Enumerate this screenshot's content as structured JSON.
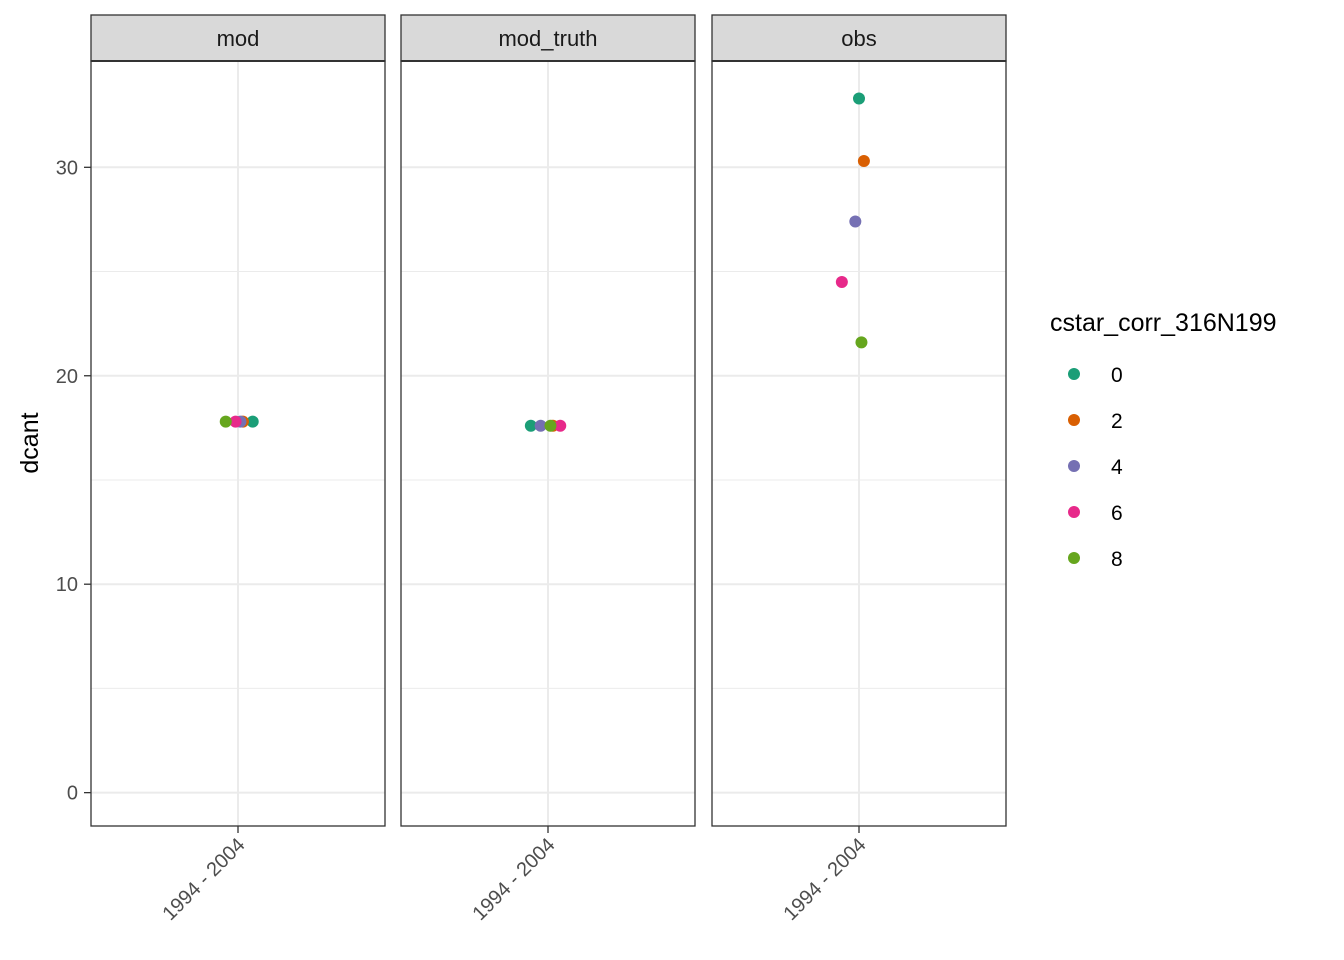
{
  "chart_data": {
    "type": "scatter",
    "title": "",
    "xlabel": "",
    "ylabel": "dcant",
    "ylim": [
      -1.6,
      35.1
    ],
    "y_major_ticks": [
      0,
      10,
      20,
      30
    ],
    "y_minor_ticks": [
      5,
      15,
      25
    ],
    "y_tick_labels": [
      "0",
      "10",
      "20",
      "30"
    ],
    "grid": true,
    "legend": {
      "title": "cstar_corr_316N199",
      "position": "right",
      "entries": [
        {
          "label": "0",
          "color": "#1B9E77"
        },
        {
          "label": "2",
          "color": "#D95F02"
        },
        {
          "label": "4",
          "color": "#7570B3"
        },
        {
          "label": "6",
          "color": "#E7298A"
        },
        {
          "label": "8",
          "color": "#66A61E"
        }
      ]
    },
    "facets": [
      {
        "label": "mod",
        "x_tick_label": "1994 - 2004",
        "points": [
          {
            "group": "0",
            "y": 17.8,
            "jitter": 0.06
          },
          {
            "group": "2",
            "y": 17.8,
            "jitter": 0.02
          },
          {
            "group": "4",
            "y": 17.8,
            "jitter": 0.01
          },
          {
            "group": "6",
            "y": 17.8,
            "jitter": -0.01
          },
          {
            "group": "8",
            "y": 17.8,
            "jitter": -0.05
          }
        ]
      },
      {
        "label": "mod_truth",
        "x_tick_label": "1994 - 2004",
        "points": [
          {
            "group": "0",
            "y": 17.6,
            "jitter": -0.07
          },
          {
            "group": "2",
            "y": 17.6,
            "jitter": 0.02
          },
          {
            "group": "4",
            "y": 17.6,
            "jitter": -0.03
          },
          {
            "group": "6",
            "y": 17.6,
            "jitter": 0.05
          },
          {
            "group": "8",
            "y": 17.6,
            "jitter": 0.01
          }
        ]
      },
      {
        "label": "obs",
        "x_tick_label": "1994 - 2004",
        "points": [
          {
            "group": "0",
            "y": 33.3,
            "jitter": 0.0
          },
          {
            "group": "2",
            "y": 30.3,
            "jitter": 0.02
          },
          {
            "group": "4",
            "y": 27.4,
            "jitter": -0.015
          },
          {
            "group": "6",
            "y": 24.5,
            "jitter": -0.07
          },
          {
            "group": "8",
            "y": 21.6,
            "jitter": 0.01
          }
        ]
      }
    ]
  }
}
